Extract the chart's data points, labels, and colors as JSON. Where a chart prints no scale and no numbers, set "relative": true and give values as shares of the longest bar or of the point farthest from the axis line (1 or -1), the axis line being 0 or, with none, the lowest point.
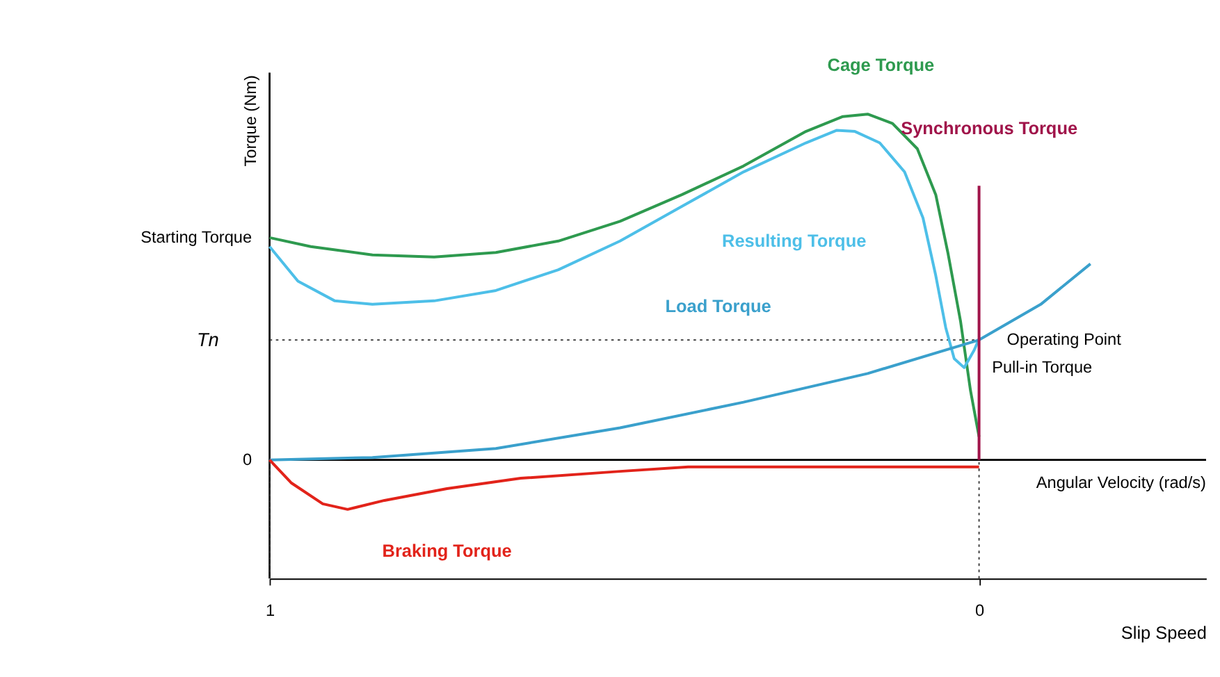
{
  "chart_data": {
    "type": "line",
    "relative": true,
    "ylabel": "Torque (Nm)",
    "xlabel": "Slip Speed",
    "xlim": [
      1,
      -0.32
    ],
    "xticks": [
      1,
      0
    ],
    "grid": false,
    "marker": "none",
    "line_style": "solid",
    "series": [
      {
        "name": "Cage Torque",
        "color": "#2e9a4f",
        "x": [
          1,
          0.942,
          0.855,
          0.768,
          0.681,
          0.593,
          0.506,
          0.419,
          0.332,
          0.244,
          0.192,
          0.157,
          0.122,
          0.087,
          0.061,
          0.044,
          0.026,
          0.012,
          0
        ],
        "values": [
          0.643,
          0.617,
          0.593,
          0.587,
          0.6,
          0.633,
          0.69,
          0.767,
          0.85,
          0.95,
          0.993,
          1,
          0.973,
          0.9,
          0.767,
          0.6,
          0.4,
          0.2,
          0.067
        ]
      },
      {
        "name": "Resulting Torque",
        "color": "#4dbfe8",
        "x": [
          1,
          0.96,
          0.908,
          0.855,
          0.768,
          0.681,
          0.593,
          0.506,
          0.419,
          0.332,
          0.244,
          0.201,
          0.175,
          0.14,
          0.105,
          0.079,
          0.061,
          0.047,
          0.035,
          0.021,
          0.007,
          0
        ],
        "values": [
          0.617,
          0.517,
          0.46,
          0.45,
          0.46,
          0.49,
          0.55,
          0.633,
          0.733,
          0.833,
          0.917,
          0.953,
          0.95,
          0.917,
          0.833,
          0.7,
          0.533,
          0.383,
          0.293,
          0.267,
          0.317,
          0.35
        ]
      },
      {
        "name": "Load Torque",
        "color": "#3aa0cc",
        "x": [
          1,
          0.855,
          0.681,
          0.506,
          0.332,
          0.157,
          0,
          -0.087,
          -0.157
        ],
        "values": [
          0,
          0.007,
          0.033,
          0.093,
          0.167,
          0.25,
          0.347,
          0.45,
          0.567
        ]
      },
      {
        "name": "Braking Torque",
        "color": "#e2231a",
        "x": [
          1,
          0.969,
          0.925,
          0.89,
          0.838,
          0.75,
          0.646,
          0.506,
          0.41,
          0
        ],
        "values": [
          0,
          -0.067,
          -0.127,
          -0.143,
          -0.117,
          -0.083,
          -0.053,
          -0.033,
          -0.02,
          -0.02
        ]
      },
      {
        "name": "Synchronous Torque",
        "color": "#a0144a",
        "x": [
          0,
          0
        ],
        "values": [
          0,
          0.793
        ]
      }
    ],
    "ref_lines": [
      {
        "axis": "y",
        "value": 0.347,
        "label": "Tn",
        "line_style": "dotted",
        "color": "#333333"
      },
      {
        "axis": "x",
        "value": 1,
        "line_style": "dotted",
        "color": "#333333"
      },
      {
        "axis": "x",
        "value": 0,
        "line_style": "dotted",
        "color": "#333333"
      }
    ],
    "annotations": [
      {
        "text": "Starting Torque",
        "x": 1,
        "y": 0.643
      },
      {
        "text": "0",
        "x": 1,
        "y": 0
      },
      {
        "text": "Operating Point",
        "x": 0,
        "y": 0.347
      },
      {
        "text": "Pull-in Torque",
        "x": 0.021,
        "y": 0.267
      },
      "Angular Velocity (rad/s)"
    ]
  }
}
